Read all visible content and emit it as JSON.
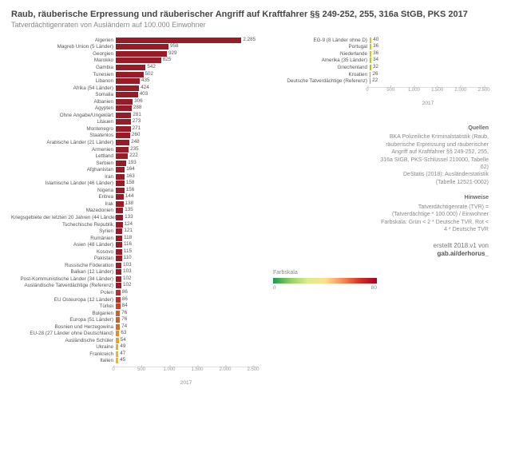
{
  "title": "Raub, räuberische Erpressung und räuberischer Angriff auf Kraftfahrer §§ 249-252, 255, 316a StGB, PKS 2017",
  "subtitle": "Tatverdächtigenraten von Ausländern auf 100.000 Einwohner",
  "axis_year": "2017",
  "left_chart": {
    "xmax": 2600,
    "ticks": [
      0,
      500,
      1000,
      1500,
      2000,
      2500
    ],
    "rows": [
      {
        "label": "Algerien",
        "value": 2285,
        "color": "#9a1a26"
      },
      {
        "label": "Magreb Union (5 Länder)",
        "value": 958,
        "color": "#9a1a26"
      },
      {
        "label": "Georgien",
        "value": 929,
        "color": "#9a1a26"
      },
      {
        "label": "Marokko",
        "value": 825,
        "color": "#9a1a26"
      },
      {
        "label": "Gambia",
        "value": 542,
        "color": "#9a1a26"
      },
      {
        "label": "Tunesien",
        "value": 502,
        "color": "#9a1a26"
      },
      {
        "label": "Libanon",
        "value": 435,
        "color": "#9a1a26"
      },
      {
        "label": "Afrika (54 Länder)",
        "value": 424,
        "color": "#9a1a26"
      },
      {
        "label": "Somalia",
        "value": 403,
        "color": "#9a1a26"
      },
      {
        "label": "Albanien",
        "value": 306,
        "color": "#9a1a26"
      },
      {
        "label": "Ägypten",
        "value": 288,
        "color": "#9a1a26"
      },
      {
        "label": "Ohne Angabe/Ungeklärt",
        "value": 281,
        "color": "#9a1a26"
      },
      {
        "label": "Litauen",
        "value": 273,
        "color": "#9a1a26"
      },
      {
        "label": "Montenegro",
        "value": 271,
        "color": "#9a1a26"
      },
      {
        "label": "Staatenlos",
        "value": 260,
        "color": "#9a1a26"
      },
      {
        "label": "Arabische Länder (21 Länder)",
        "value": 248,
        "color": "#9a1a26"
      },
      {
        "label": "Armenien",
        "value": 235,
        "color": "#9a1a26"
      },
      {
        "label": "Lettland",
        "value": 222,
        "color": "#9a1a26"
      },
      {
        "label": "Serbien",
        "value": 193,
        "color": "#9a1a26"
      },
      {
        "label": "Afghanistan",
        "value": 164,
        "color": "#9a1a26"
      },
      {
        "label": "Iran",
        "value": 163,
        "color": "#9a1a26"
      },
      {
        "label": "Islamische Länder (46 Länder)",
        "value": 158,
        "color": "#9a1a26"
      },
      {
        "label": "Nigeria",
        "value": 156,
        "color": "#9a1a26"
      },
      {
        "label": "Eritrea",
        "value": 144,
        "color": "#9a1a26"
      },
      {
        "label": "Irak",
        "value": 138,
        "color": "#9a1a26"
      },
      {
        "label": "Mazedonien",
        "value": 135,
        "color": "#9a1a26"
      },
      {
        "label": "Kriegsgebiete der letzten 20 Jahren (44 Länder)",
        "value": 133,
        "color": "#9a1a26"
      },
      {
        "label": "Tschechische Republik",
        "value": 124,
        "color": "#9a1a26"
      },
      {
        "label": "Syrien",
        "value": 121,
        "color": "#9a1a26"
      },
      {
        "label": "Rumänien",
        "value": 118,
        "color": "#9a1a26"
      },
      {
        "label": "Asien (48 Länder)",
        "value": 116,
        "color": "#9a1a26"
      },
      {
        "label": "Kosovo",
        "value": 115,
        "color": "#9a1a26"
      },
      {
        "label": "Pakistan",
        "value": 110,
        "color": "#9a1a26"
      },
      {
        "label": "Russische Föderation",
        "value": 103,
        "color": "#9a1a26"
      },
      {
        "label": "Balkan (12 Länder)",
        "value": 103,
        "color": "#9a1a26"
      },
      {
        "label": "Post-Kommunistische Länder (34 Länder)",
        "value": 102,
        "color": "#9a1a26"
      },
      {
        "label": "Ausländische Tatverdächtige (Referenz)",
        "value": 102,
        "color": "#9a1a26"
      },
      {
        "label": "Polen",
        "value": 86,
        "color": "#b82e2e"
      },
      {
        "label": "EU Osteuropa (12 Länder)",
        "value": 86,
        "color": "#b82e2e"
      },
      {
        "label": "Türkei",
        "value": 84,
        "color": "#c6452a"
      },
      {
        "label": "Bulgarien",
        "value": 76,
        "color": "#d06028"
      },
      {
        "label": "Europa (51 Länder)",
        "value": 76,
        "color": "#d06028"
      },
      {
        "label": "Bosnien und Herzegowina",
        "value": 74,
        "color": "#d66e26"
      },
      {
        "label": "EU-28 (27 Länder ohne Deutschland)",
        "value": 63,
        "color": "#e28e24"
      },
      {
        "label": "Ausländische Schüler",
        "value": 54,
        "color": "#e8a322"
      },
      {
        "label": "Ukraine",
        "value": 49,
        "color": "#ebb020"
      },
      {
        "label": "Frankreich",
        "value": 47,
        "color": "#ecb520"
      },
      {
        "label": "Italien",
        "value": 45,
        "color": "#edb91f"
      }
    ]
  },
  "right_chart": {
    "xmax": 2600,
    "ticks": [
      0,
      500,
      1000,
      1500,
      2000,
      2500
    ],
    "rows": [
      {
        "label": "EG-9 (8 Länder ohne D)",
        "value": 40,
        "color": "#d9c41e"
      },
      {
        "label": "Portugal",
        "value": 36,
        "color": "#c9c81e"
      },
      {
        "label": "Niederlande",
        "value": 36,
        "color": "#c9c81e"
      },
      {
        "label": "Amerika (35 Länder)",
        "value": 34,
        "color": "#b9ca1e"
      },
      {
        "label": "Griechenland",
        "value": 32,
        "color": "#aacb1e"
      },
      {
        "label": "Kroatien",
        "value": 26,
        "color": "#8bc91e"
      },
      {
        "label": "Deutsche Tatverdächtige (Referenz)",
        "value": 22,
        "color": "#6fc71e"
      }
    ]
  },
  "sources": {
    "head": "Quellen",
    "lines": [
      "BKA Polizeiliche Kriminalstatistik (Raub,",
      "räuberische Erpressung und räuberischer",
      "Angriff auf Kraftfahrer §§ 249-252, 255,",
      "316a StGB, PKS-Schlüssel 210000, Tabelle",
      "62)",
      "DeStatis (2018): Ausländerstatistik",
      "(Tabelle 12521-0002)"
    ]
  },
  "notes": {
    "head": "Hinweise",
    "lines": [
      "Tatverdächtigenrate (TVR) =",
      "(Tatverdächtige * 100.000) / Einwohner",
      "Farbskala: Grün < 2 * Deutsche TVR, Rot <",
      "4 * Deutsche TVR"
    ]
  },
  "credit_prefix": "erstellt 2018.v1 von",
  "credit_link": "gab.ai/derhorus_",
  "colorscale": {
    "title": "Farbskala",
    "min": 0,
    "max": 80,
    "gradient": [
      "#1a9850",
      "#91cf60",
      "#d9ef8b",
      "#fee08b",
      "#fc8d59",
      "#d73027",
      "#a50026"
    ]
  },
  "style": {
    "bg": "#ffffff",
    "text": "#555555",
    "muted": "#888888"
  }
}
